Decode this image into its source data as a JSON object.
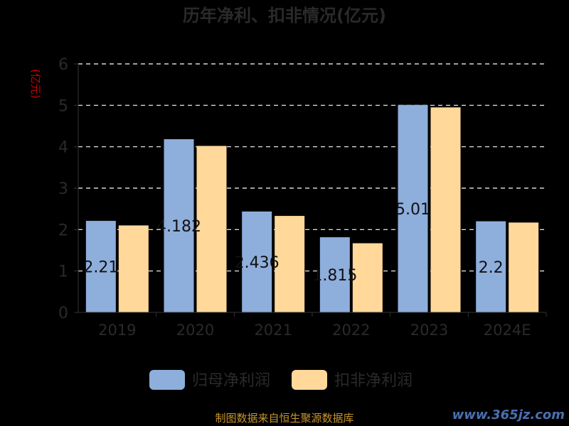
{
  "chart_data": {
    "type": "bar",
    "title": "历年净利、扣非情况(亿元)",
    "ylabel": "(亿元)",
    "xlabel": "",
    "ylim": [
      0,
      6
    ],
    "yticks": [
      0,
      1,
      2,
      3,
      4,
      5,
      6
    ],
    "grid": true,
    "legend_position": "bottom",
    "categories": [
      "2019",
      "2020",
      "2021",
      "2022",
      "2023",
      "2024E"
    ],
    "series": [
      {
        "name": "归母净利润",
        "color": "#8eaedc",
        "values": [
          2.21,
          4.182,
          2.436,
          1.815,
          5.01,
          2.2
        ],
        "labels": [
          "2.21",
          "4.182",
          "2.436",
          "1.815",
          "5.01",
          "2.2"
        ]
      },
      {
        "name": "扣非净利润",
        "color": "#ffd89a",
        "values": [
          2.1,
          4.02,
          2.33,
          1.67,
          4.95,
          2.17
        ]
      }
    ]
  },
  "footer": {
    "source": "制图数据来自恒生聚源数据库",
    "watermark": "www.365jz.com"
  }
}
